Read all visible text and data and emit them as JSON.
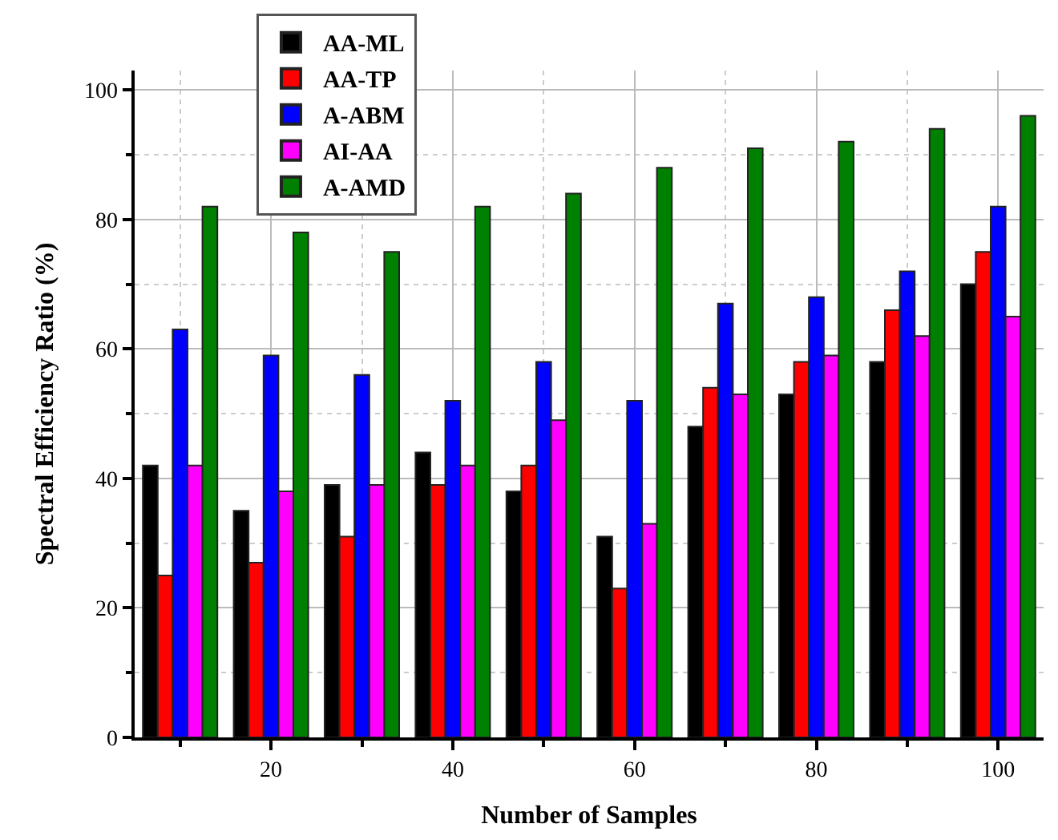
{
  "chart_data": {
    "type": "bar",
    "xlabel": "Number of Samples",
    "ylabel": "Spectral Efficiency Ratio (%)",
    "x": [
      10,
      20,
      30,
      40,
      50,
      60,
      70,
      80,
      90,
      100
    ],
    "series": [
      {
        "name": "AA-ML",
        "color": "#000000",
        "values": [
          42,
          35,
          39,
          44,
          38,
          31,
          48,
          53,
          58,
          70
        ]
      },
      {
        "name": "AA-TP",
        "color": "#ff0000",
        "values": [
          25,
          27,
          31,
          39,
          42,
          23,
          54,
          58,
          66,
          75
        ]
      },
      {
        "name": "A-ABM",
        "color": "#0000ff",
        "values": [
          63,
          59,
          56,
          52,
          58,
          52,
          67,
          68,
          72,
          82
        ]
      },
      {
        "name": "AI-AA",
        "color": "#ff00ff",
        "values": [
          42,
          38,
          39,
          42,
          49,
          33,
          53,
          59,
          62,
          65
        ]
      },
      {
        "name": "A-AMD",
        "color": "#008000",
        "values": [
          82,
          78,
          75,
          82,
          84,
          88,
          91,
          92,
          94,
          96
        ]
      }
    ],
    "xlim": [
      5,
      105
    ],
    "xticks": [
      {
        "value": 10,
        "label": null
      },
      20,
      {
        "value": 30,
        "label": null
      },
      40,
      {
        "value": 50,
        "label": null
      },
      60,
      {
        "value": 70,
        "label": null
      },
      80,
      {
        "value": 90,
        "label": null
      },
      100
    ],
    "ylim": [
      0,
      103
    ],
    "yticks": [
      0,
      {
        "value": 10,
        "label": null
      },
      20,
      {
        "value": 30,
        "label": null
      },
      40,
      {
        "value": 50,
        "label": null
      },
      60,
      {
        "value": 70,
        "label": null
      },
      80,
      {
        "value": 90,
        "label": null
      },
      100
    ],
    "grid": true,
    "legend": "top left"
  }
}
